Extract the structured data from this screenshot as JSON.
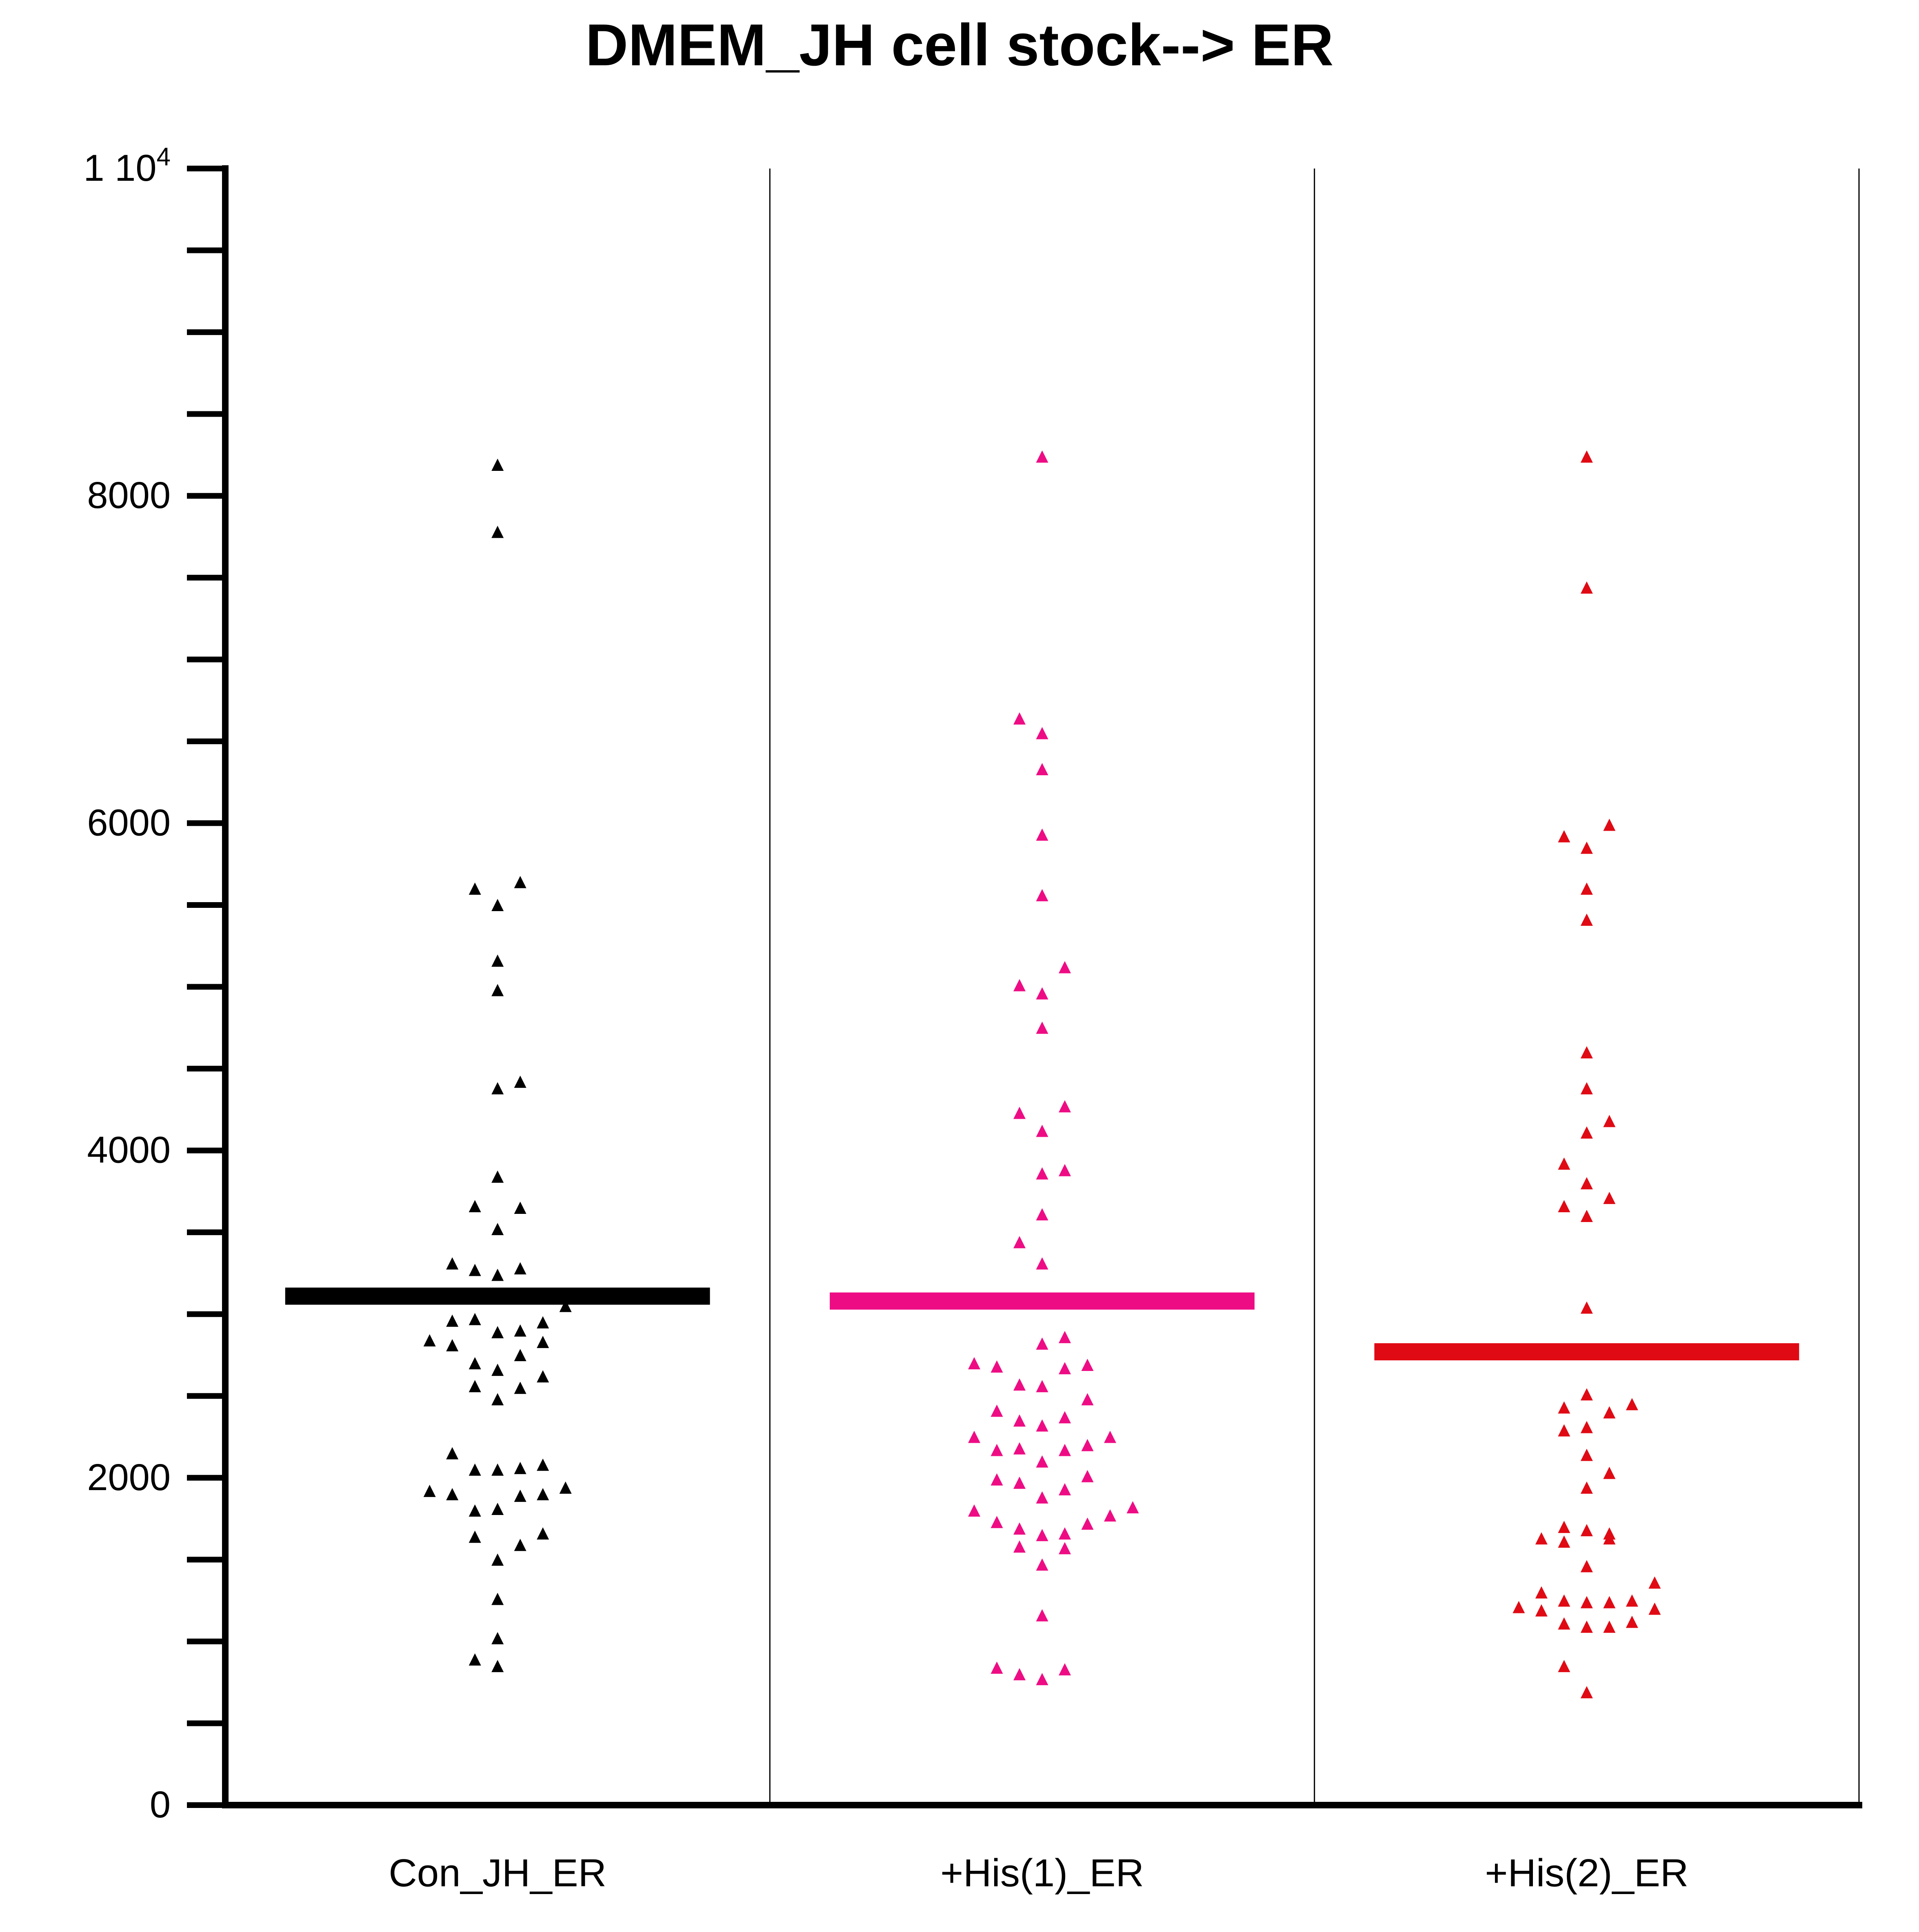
{
  "title": "DMEM_JH cell stock--> ER",
  "chart_data": {
    "type": "scatter",
    "subtype": "dot-plot with mean line",
    "title": "DMEM_JH cell stock--> ER",
    "xlabel": "",
    "ylabel": "",
    "ylim": [
      0,
      10000
    ],
    "yticks": [
      {
        "value": 0,
        "label": "0"
      },
      {
        "value": 2000,
        "label": "2000"
      },
      {
        "value": 4000,
        "label": "4000"
      },
      {
        "value": 6000,
        "label": "6000"
      },
      {
        "value": 8000,
        "label": "8000"
      },
      {
        "value": 10000,
        "label": "1 10",
        "sup": "4"
      }
    ],
    "minor_tick_step": 500,
    "grid": false,
    "legend": "none",
    "categories": [
      "Con_JH_ER",
      "+His(1)_ER",
      "+His(2)_ER"
    ],
    "series": [
      {
        "color": "#000000",
        "mean": 3110,
        "marker": "triangle",
        "points": [
          [
            0,
            8190
          ],
          [
            0,
            7780
          ],
          [
            -3,
            5600
          ],
          [
            0,
            5500
          ],
          [
            3,
            5640
          ],
          [
            0,
            5160
          ],
          [
            0,
            4980
          ],
          [
            0,
            4380
          ],
          [
            3,
            4420
          ],
          [
            0,
            3840
          ],
          [
            -3,
            3660
          ],
          [
            3,
            3650
          ],
          [
            0,
            3520
          ],
          [
            -6,
            3310
          ],
          [
            -3,
            3270
          ],
          [
            0,
            3240
          ],
          [
            3,
            3280
          ],
          [
            9,
            3050
          ],
          [
            -3,
            2970
          ],
          [
            -6,
            2960
          ],
          [
            0,
            2890
          ],
          [
            3,
            2900
          ],
          [
            6,
            2950
          ],
          [
            -9,
            2840
          ],
          [
            -6,
            2810
          ],
          [
            6,
            2830
          ],
          [
            -3,
            2700
          ],
          [
            0,
            2660
          ],
          [
            3,
            2750
          ],
          [
            -3,
            2560
          ],
          [
            3,
            2550
          ],
          [
            6,
            2620
          ],
          [
            0,
            2480
          ],
          [
            -9,
            1920
          ],
          [
            -6,
            2150
          ],
          [
            -6,
            1900
          ],
          [
            -3,
            2050
          ],
          [
            0,
            2050
          ],
          [
            3,
            2060
          ],
          [
            6,
            2080
          ],
          [
            -3,
            1800
          ],
          [
            0,
            1810
          ],
          [
            3,
            1890
          ],
          [
            6,
            1900
          ],
          [
            9,
            1940
          ],
          [
            6,
            1660
          ],
          [
            -3,
            1640
          ],
          [
            0,
            1500
          ],
          [
            3,
            1590
          ],
          [
            0,
            1260
          ],
          [
            0,
            1020
          ],
          [
            -3,
            890
          ],
          [
            0,
            850
          ]
        ]
      },
      {
        "color": "#ee0c84",
        "mean": 3080,
        "marker": "triangle",
        "points": [
          [
            0,
            8240
          ],
          [
            -3,
            6640
          ],
          [
            0,
            6550
          ],
          [
            0,
            6330
          ],
          [
            0,
            5930
          ],
          [
            0,
            5560
          ],
          [
            -3,
            5010
          ],
          [
            0,
            4960
          ],
          [
            3,
            5120
          ],
          [
            0,
            4750
          ],
          [
            -3,
            4230
          ],
          [
            0,
            4120
          ],
          [
            3,
            4270
          ],
          [
            0,
            3860
          ],
          [
            3,
            3880
          ],
          [
            0,
            3610
          ],
          [
            -3,
            3440
          ],
          [
            0,
            3310
          ],
          [
            0,
            2820
          ],
          [
            3,
            2860
          ],
          [
            -9,
            2700
          ],
          [
            -6,
            2680
          ],
          [
            -3,
            2570
          ],
          [
            0,
            2560
          ],
          [
            3,
            2670
          ],
          [
            6,
            2690
          ],
          [
            -6,
            2410
          ],
          [
            -3,
            2350
          ],
          [
            0,
            2320
          ],
          [
            3,
            2370
          ],
          [
            6,
            2480
          ],
          [
            -9,
            2250
          ],
          [
            -6,
            2170
          ],
          [
            -3,
            2180
          ],
          [
            0,
            2100
          ],
          [
            3,
            2170
          ],
          [
            6,
            2200
          ],
          [
            9,
            2250
          ],
          [
            -6,
            1990
          ],
          [
            -3,
            1970
          ],
          [
            0,
            1880
          ],
          [
            3,
            1930
          ],
          [
            6,
            2010
          ],
          [
            -9,
            1800
          ],
          [
            -6,
            1730
          ],
          [
            -3,
            1690
          ],
          [
            0,
            1650
          ],
          [
            3,
            1660
          ],
          [
            6,
            1720
          ],
          [
            9,
            1770
          ],
          [
            12,
            1820
          ],
          [
            -3,
            1580
          ],
          [
            0,
            1470
          ],
          [
            3,
            1570
          ],
          [
            0,
            1160
          ],
          [
            -6,
            840
          ],
          [
            -3,
            800
          ],
          [
            0,
            770
          ],
          [
            3,
            830
          ]
        ]
      },
      {
        "color": "#e00a14",
        "mean": 2770,
        "marker": "triangle",
        "points": [
          [
            0,
            8240
          ],
          [
            0,
            7440
          ],
          [
            -3,
            5920
          ],
          [
            0,
            5850
          ],
          [
            3,
            5990
          ],
          [
            0,
            5600
          ],
          [
            0,
            5410
          ],
          [
            0,
            4600
          ],
          [
            0,
            4380
          ],
          [
            0,
            4110
          ],
          [
            3,
            4180
          ],
          [
            -3,
            3920
          ],
          [
            0,
            3800
          ],
          [
            3,
            3710
          ],
          [
            -3,
            3660
          ],
          [
            0,
            3600
          ],
          [
            0,
            3040
          ],
          [
            -3,
            2430
          ],
          [
            0,
            2510
          ],
          [
            3,
            2400
          ],
          [
            6,
            2450
          ],
          [
            -3,
            2290
          ],
          [
            0,
            2310
          ],
          [
            0,
            2140
          ],
          [
            3,
            2030
          ],
          [
            0,
            1940
          ],
          [
            -6,
            1630
          ],
          [
            -3,
            1610
          ],
          [
            -3,
            1700
          ],
          [
            0,
            1680
          ],
          [
            3,
            1660
          ],
          [
            3,
            1630
          ],
          [
            0,
            1460
          ],
          [
            -9,
            1210
          ],
          [
            -6,
            1190
          ],
          [
            -6,
            1300
          ],
          [
            -3,
            1250
          ],
          [
            0,
            1240
          ],
          [
            3,
            1240
          ],
          [
            6,
            1250
          ],
          [
            9,
            1360
          ],
          [
            9,
            1200
          ],
          [
            -3,
            1110
          ],
          [
            0,
            1090
          ],
          [
            3,
            1090
          ],
          [
            6,
            1120
          ],
          [
            -3,
            850
          ],
          [
            0,
            690
          ]
        ]
      }
    ]
  }
}
